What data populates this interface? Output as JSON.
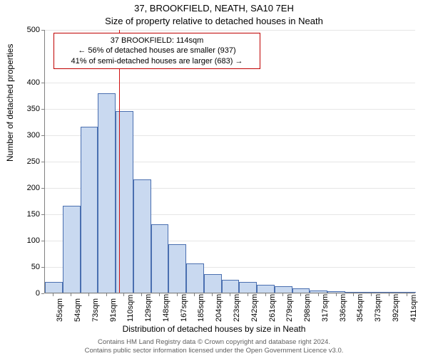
{
  "titles": {
    "main": "37, BROOKFIELD, NEATH, SA10 7EH",
    "sub": "Size of property relative to detached houses in Neath"
  },
  "axes": {
    "ylabel": "Number of detached properties",
    "xlabel": "Distribution of detached houses by size in Neath",
    "ylim": [
      0,
      500
    ],
    "yticks": [
      0,
      50,
      100,
      150,
      200,
      250,
      300,
      350,
      400,
      500
    ],
    "xtick_labels": [
      "35sqm",
      "54sqm",
      "73sqm",
      "91sqm",
      "110sqm",
      "129sqm",
      "148sqm",
      "167sqm",
      "185sqm",
      "204sqm",
      "223sqm",
      "242sqm",
      "261sqm",
      "279sqm",
      "298sqm",
      "317sqm",
      "336sqm",
      "354sqm",
      "373sqm",
      "392sqm",
      "411sqm"
    ]
  },
  "histogram": {
    "type": "bar",
    "values": [
      20,
      165,
      315,
      378,
      345,
      215,
      130,
      92,
      55,
      35,
      25,
      20,
      15,
      12,
      8,
      4,
      3,
      2,
      2,
      0,
      0
    ],
    "bar_fill": "#c9d9f0",
    "bar_stroke": "#4a6fb0",
    "bar_width_ratio": 1.0
  },
  "reference_line": {
    "x_value_sqm": 114,
    "color": "#d01010"
  },
  "annotation": {
    "border_color": "#c00000",
    "bg_color": "#ffffff",
    "line1": "37 BROOKFIELD: 114sqm",
    "line2": "← 56% of detached houses are smaller (937)",
    "line3": "41% of semi-detached houses are larger (683) →"
  },
  "footer": {
    "line1": "Contains HM Land Registry data © Crown copyright and database right 2024.",
    "line2": "Contains public sector information licensed under the Open Government Licence v3.0."
  },
  "colors": {
    "background": "#ffffff",
    "axis_line": "#808080",
    "grid": "#e6e6e6",
    "text": "#000000",
    "footer_text": "#606060"
  },
  "fonts": {
    "title_size": 13,
    "label_size": 12,
    "tick_size": 11,
    "annotation_size": 11,
    "footer_size": 9.5
  }
}
